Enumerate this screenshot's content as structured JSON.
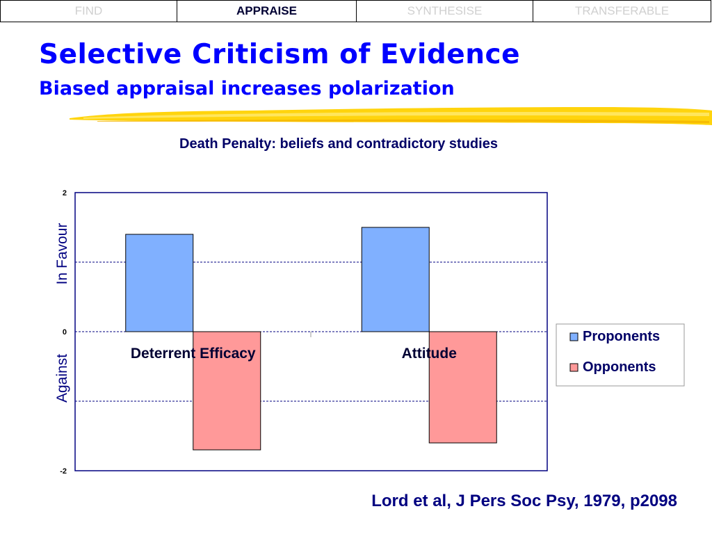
{
  "nav": {
    "tabs": [
      {
        "label": "FIND",
        "active": false
      },
      {
        "label": "APPRAISE",
        "active": true
      },
      {
        "label": "SYNTHESISE",
        "active": false
      },
      {
        "label": "TRANSFERABLE",
        "active": false
      }
    ]
  },
  "slide": {
    "title": "Selective Criticism of Evidence",
    "subtitle": "Biased appraisal increases polarization",
    "citation": "Lord et al, J Pers Soc Psy, 1979, p2098"
  },
  "chart_data": {
    "type": "bar",
    "title": "Death Penalty: beliefs and contradictory studies",
    "categories": [
      "Deterrent Efficacy",
      "Attitude"
    ],
    "series": [
      {
        "name": "Proponents",
        "values": [
          1.4,
          1.5
        ],
        "color": "#80b0ff"
      },
      {
        "name": "Opponents",
        "values": [
          -1.7,
          -1.6
        ],
        "color": "#ff9999"
      }
    ],
    "ylim": [
      -2,
      2
    ],
    "yticks": [
      "2",
      "0",
      "-2"
    ],
    "ylabel_top": "In Favour",
    "ylabel_bottom": "Against",
    "grid": true,
    "legend_position": "right"
  }
}
